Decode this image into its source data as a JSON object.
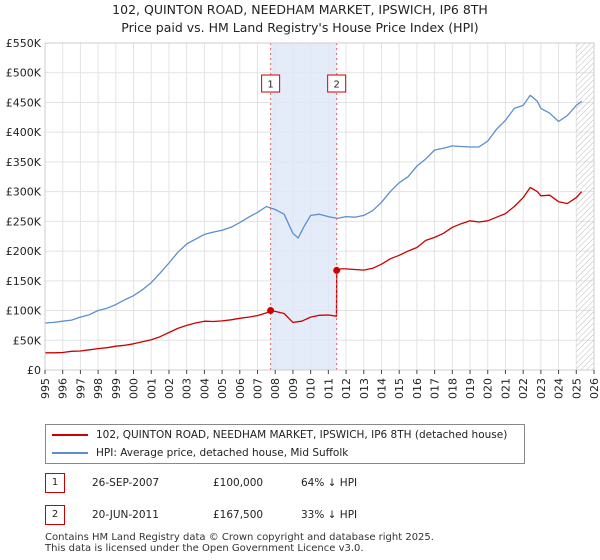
{
  "chart_data": {
    "type": "line",
    "title": "102, QUINTON ROAD, NEEDHAM MARKET, IPSWICH, IP6 8TH",
    "subtitle": "Price paid vs. HM Land Registry's House Price Index (HPI)",
    "xlabel": "",
    "ylabel": "",
    "xlim": [
      1995,
      2026
    ],
    "ylim": [
      0,
      550000
    ],
    "x_ticks": [
      "1995",
      "1996",
      "1997",
      "1998",
      "1999",
      "2000",
      "2001",
      "2002",
      "2003",
      "2004",
      "2005",
      "2006",
      "2007",
      "2008",
      "2009",
      "2010",
      "2011",
      "2012",
      "2013",
      "2014",
      "2015",
      "2016",
      "2017",
      "2018",
      "2019",
      "2020",
      "2021",
      "2022",
      "2023",
      "2024",
      "2025",
      "2026"
    ],
    "y_ticks": [
      "£0",
      "£50K",
      "£100K",
      "£150K",
      "£200K",
      "£250K",
      "£300K",
      "£350K",
      "£400K",
      "£450K",
      "£500K",
      "£550K"
    ],
    "grid": true,
    "shaded_period": [
      2007.74,
      2011.47
    ],
    "forecast_hatch_from": 2025.0,
    "series": [
      {
        "name": "102, QUINTON ROAD, NEEDHAM MARKET, IPSWICH, IP6 8TH (detached house)",
        "color": "#cc0000",
        "x": [
          1995.0,
          1995.5,
          1996.0,
          1996.5,
          1997.0,
          1997.5,
          1998.0,
          1998.5,
          1999.0,
          1999.5,
          2000.0,
          2000.5,
          2001.0,
          2001.5,
          2002.0,
          2002.5,
          2003.0,
          2003.5,
          2004.0,
          2004.5,
          2005.0,
          2005.5,
          2006.0,
          2006.5,
          2007.0,
          2007.5,
          2007.74,
          2008.0,
          2008.5,
          2009.0,
          2009.5,
          2010.0,
          2010.5,
          2011.0,
          2011.46,
          2011.47,
          2011.7,
          2012.0,
          2012.5,
          2013.0,
          2013.5,
          2014.0,
          2014.5,
          2015.0,
          2015.5,
          2016.0,
          2016.5,
          2017.0,
          2017.5,
          2018.0,
          2018.5,
          2019.0,
          2019.5,
          2020.0,
          2020.5,
          2021.0,
          2021.5,
          2022.0,
          2022.4,
          2022.8,
          2023.0,
          2023.5,
          2024.0,
          2024.5,
          2025.0,
          2025.3
        ],
        "values": [
          29000,
          29000,
          29500,
          31500,
          32000,
          34000,
          36000,
          37500,
          40000,
          41500,
          44000,
          47500,
          51000,
          56000,
          63000,
          70000,
          75000,
          79000,
          82000,
          81500,
          82500,
          84500,
          87000,
          89000,
          91500,
          96000,
          100000,
          98500,
          95000,
          80000,
          82000,
          89000,
          92000,
          92500,
          90500,
          167500,
          170000,
          170000,
          169000,
          168000,
          171000,
          178000,
          187000,
          193000,
          200000,
          206000,
          218000,
          223000,
          230000,
          240000,
          246000,
          251000,
          249000,
          251000,
          257000,
          263000,
          275000,
          290000,
          307000,
          300000,
          293000,
          294000,
          283000,
          280000,
          290000,
          300000
        ]
      },
      {
        "name": "HPI: Average price, detached house, Mid Suffolk",
        "color": "#5b8fcf",
        "x": [
          1995.0,
          1995.5,
          1996.0,
          1996.5,
          1997.0,
          1997.5,
          1998.0,
          1998.5,
          1999.0,
          1999.5,
          2000.0,
          2000.5,
          2001.0,
          2001.5,
          2002.0,
          2002.5,
          2003.0,
          2003.5,
          2004.0,
          2004.5,
          2005.0,
          2005.5,
          2006.0,
          2006.5,
          2007.0,
          2007.5,
          2008.0,
          2008.5,
          2009.0,
          2009.3,
          2009.6,
          2010.0,
          2010.5,
          2011.0,
          2011.5,
          2012.0,
          2012.5,
          2013.0,
          2013.5,
          2014.0,
          2014.5,
          2015.0,
          2015.5,
          2016.0,
          2016.5,
          2017.0,
          2017.5,
          2018.0,
          2018.5,
          2019.0,
          2019.5,
          2020.0,
          2020.5,
          2021.0,
          2021.5,
          2022.0,
          2022.4,
          2022.8,
          2023.0,
          2023.5,
          2024.0,
          2024.5,
          2025.0,
          2025.3
        ],
        "values": [
          79000,
          80000,
          82000,
          84000,
          89000,
          93000,
          100000,
          104000,
          110000,
          118000,
          125000,
          135000,
          147000,
          163000,
          180000,
          198000,
          212000,
          220000,
          228000,
          232000,
          235000,
          240000,
          248000,
          257000,
          265000,
          275000,
          270000,
          262000,
          230000,
          222000,
          240000,
          260000,
          262000,
          258000,
          255000,
          258000,
          257000,
          260000,
          268000,
          282000,
          300000,
          315000,
          325000,
          343000,
          355000,
          370000,
          373000,
          377000,
          376000,
          375000,
          375000,
          385000,
          405000,
          420000,
          440000,
          445000,
          462000,
          452000,
          440000,
          432000,
          418000,
          428000,
          445000,
          452000
        ]
      }
    ],
    "markers": [
      {
        "label": "1",
        "x": 2007.74,
        "value": 100000
      },
      {
        "label": "2",
        "x": 2011.47,
        "value": 167500
      }
    ]
  },
  "legend": {
    "red_label": "102, QUINTON ROAD, NEEDHAM MARKET, IPSWICH, IP6 8TH (detached house)",
    "blue_label": "HPI: Average price, detached house, Mid Suffolk"
  },
  "transactions": [
    {
      "num": "1",
      "date": "26-SEP-2007",
      "price": "£100,000",
      "hpi": "64% ↓ HPI"
    },
    {
      "num": "2",
      "date": "20-JUN-2011",
      "price": "£167,500",
      "hpi": "33% ↓ HPI"
    }
  ],
  "footer": {
    "line1": "Contains HM Land Registry data © Crown copyright and database right 2025.",
    "line2": "This data is licensed under the Open Government Licence v3.0."
  }
}
